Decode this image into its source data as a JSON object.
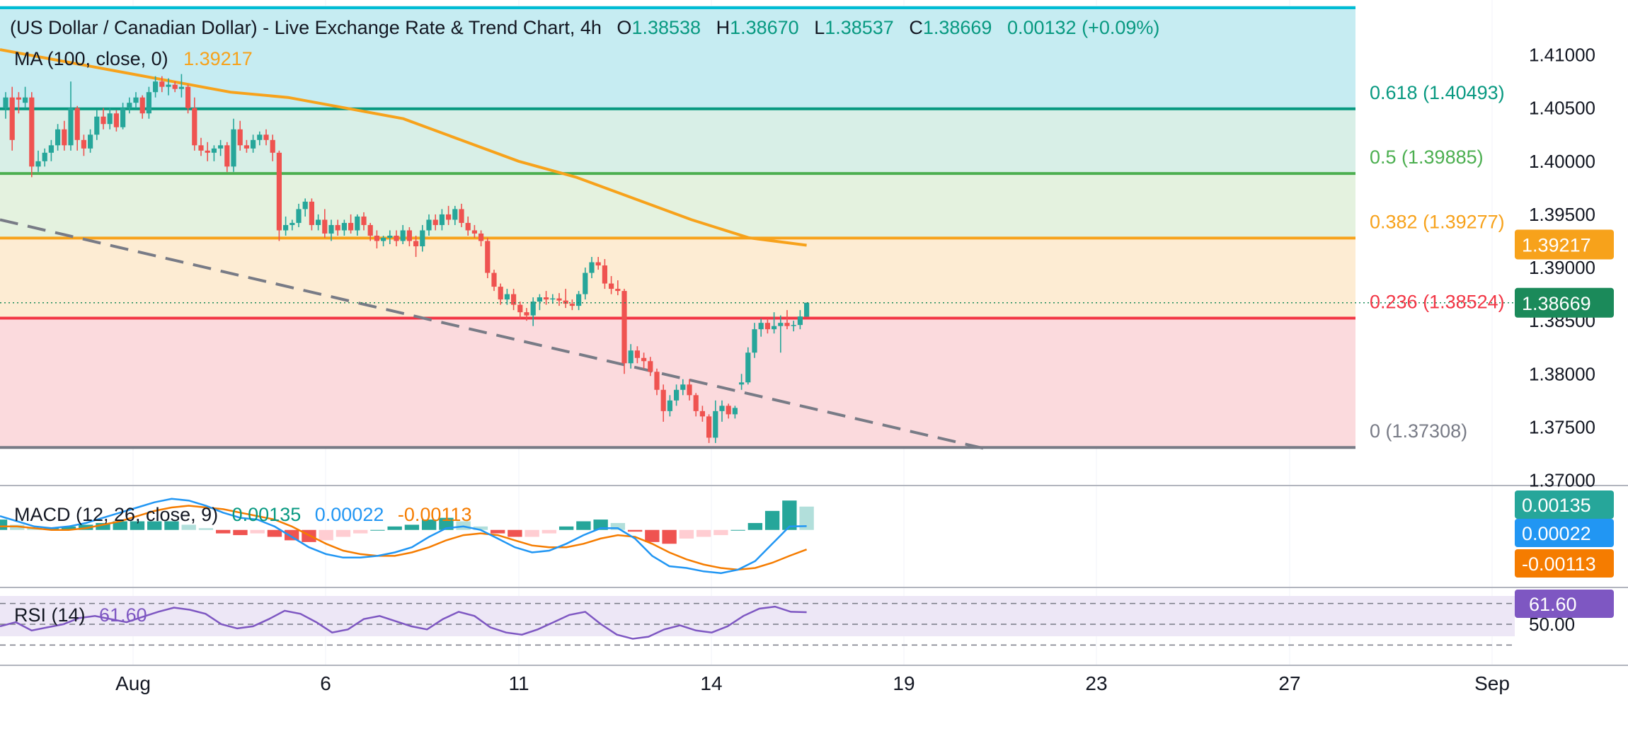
{
  "header": {
    "title": "(US Dollar / Canadian Dollar) - Live Exchange Rate & Trend Chart, 4h",
    "ohlc": [
      {
        "key": "O",
        "value": "1.38538"
      },
      {
        "key": "H",
        "value": "1.38670"
      },
      {
        "key": "L",
        "value": "1.38537"
      },
      {
        "key": "C",
        "value": "1.38669"
      }
    ],
    "change": "0.00132 (+0.09%)",
    "ma_label": "MA (100, close, 0)",
    "ma_value": "1.39217"
  },
  "colors": {
    "up": "#26a69a",
    "down": "#ef5350",
    "ma": "#f7a21b",
    "macd": "#2196f3",
    "signal": "#f57c00",
    "rsi": "#7e57c2",
    "price_badge": "#1b8a5a",
    "fib_0_786_band": "#c6ecf2",
    "fib_0_618_band": "#d8efe7",
    "fib_0_5_band": "#e4f2df",
    "fib_0_382_band": "#fdecd3",
    "fib_0_236_band": "#fbdadd"
  },
  "chart_data": [
    {
      "type": "candlestick",
      "title": "(US Dollar / Canadian Dollar) - Live Exchange Rate & Trend Chart, 4h",
      "x_ticks": [
        "Aug",
        "6",
        "11",
        "14",
        "19",
        "23",
        "27",
        "Sep"
      ],
      "y_ticks": [
        "1.41000",
        "1.40500",
        "1.40000",
        "1.39500",
        "1.39000",
        "1.38500",
        "1.38000",
        "1.37500",
        "1.37000"
      ],
      "ylim": [
        1.3695,
        1.4145
      ],
      "candles": [
        [
          1.405,
          1.4065,
          1.404,
          1.406
        ],
        [
          1.406,
          1.407,
          1.401,
          1.402
        ],
        [
          1.406,
          1.4065,
          1.4045,
          1.4058
        ],
        [
          1.4055,
          1.407,
          1.405,
          1.406
        ],
        [
          1.406,
          1.4065,
          1.3985,
          1.3995
        ],
        [
          1.3995,
          1.401,
          1.399,
          1.4
        ],
        [
          1.4,
          1.4012,
          1.3995,
          1.4008
        ],
        [
          1.4008,
          1.402,
          1.4,
          1.4015
        ],
        [
          1.4015,
          1.4035,
          1.401,
          1.403
        ],
        [
          1.403,
          1.4038,
          1.401,
          1.4015
        ],
        [
          1.4015,
          1.4075,
          1.401,
          1.405
        ],
        [
          1.405,
          1.4052,
          1.401,
          1.402
        ],
        [
          1.402,
          1.4025,
          1.4005,
          1.4012
        ],
        [
          1.4012,
          1.403,
          1.4008,
          1.4025
        ],
        [
          1.4025,
          1.4048,
          1.402,
          1.4042
        ],
        [
          1.4042,
          1.405,
          1.403,
          1.4035
        ],
        [
          1.4035,
          1.405,
          1.403,
          1.4045
        ],
        [
          1.4045,
          1.4048,
          1.4028,
          1.4032
        ],
        [
          1.4032,
          1.4055,
          1.403,
          1.405
        ],
        [
          1.405,
          1.406,
          1.4045,
          1.4055
        ],
        [
          1.4055,
          1.4065,
          1.405,
          1.406
        ],
        [
          1.406,
          1.4062,
          1.404,
          1.4045
        ],
        [
          1.4045,
          1.407,
          1.404,
          1.4065
        ],
        [
          1.4065,
          1.408,
          1.406,
          1.4075
        ],
        [
          1.4075,
          1.408,
          1.4065,
          1.407
        ],
        [
          1.407,
          1.4078,
          1.4062,
          1.4072
        ],
        [
          1.4072,
          1.4075,
          1.4065,
          1.4068
        ],
        [
          1.4068,
          1.4082,
          1.406,
          1.407
        ],
        [
          1.407,
          1.4072,
          1.4045,
          1.405
        ],
        [
          1.405,
          1.406,
          1.401,
          1.4015
        ],
        [
          1.4015,
          1.4022,
          1.4005,
          1.401
        ],
        [
          1.401,
          1.4018,
          1.4,
          1.4008
        ],
        [
          1.4008,
          1.4015,
          1.4,
          1.4012
        ],
        [
          1.4012,
          1.402,
          1.4005,
          1.4015
        ],
        [
          1.4015,
          1.4018,
          1.399,
          1.3995
        ],
        [
          1.3995,
          1.404,
          1.399,
          1.403
        ],
        [
          1.403,
          1.4038,
          1.401,
          1.4015
        ],
        [
          1.4015,
          1.402,
          1.4008,
          1.4012
        ],
        [
          1.4012,
          1.4025,
          1.4008,
          1.402
        ],
        [
          1.402,
          1.4028,
          1.4015,
          1.4025
        ],
        [
          1.4025,
          1.403,
          1.4015,
          1.402
        ],
        [
          1.402,
          1.4025,
          1.4,
          1.4008
        ],
        [
          1.4008,
          1.401,
          1.3925,
          1.3935
        ],
        [
          1.3935,
          1.3948,
          1.393,
          1.394
        ],
        [
          1.394,
          1.3945,
          1.3935,
          1.3942
        ],
        [
          1.3942,
          1.396,
          1.3938,
          1.3955
        ],
        [
          1.3955,
          1.3965,
          1.3948,
          1.3962
        ],
        [
          1.3962,
          1.3965,
          1.3935,
          1.394
        ],
        [
          1.394,
          1.395,
          1.3935,
          1.3945
        ],
        [
          1.3945,
          1.3955,
          1.3928,
          1.3932
        ],
        [
          1.3932,
          1.3945,
          1.3925,
          1.394
        ],
        [
          1.394,
          1.3945,
          1.393,
          1.3935
        ],
        [
          1.3935,
          1.3945,
          1.393,
          1.3942
        ],
        [
          1.3942,
          1.395,
          1.3932,
          1.3935
        ],
        [
          1.3935,
          1.395,
          1.393,
          1.3948
        ],
        [
          1.3948,
          1.3952,
          1.3935,
          1.394
        ],
        [
          1.394,
          1.3942,
          1.3925,
          1.393
        ],
        [
          1.393,
          1.3935,
          1.3918,
          1.3925
        ],
        [
          1.3925,
          1.393,
          1.392,
          1.3928
        ],
        [
          1.3928,
          1.3935,
          1.3922,
          1.393
        ],
        [
          1.393,
          1.3935,
          1.392,
          1.3925
        ],
        [
          1.3925,
          1.394,
          1.3922,
          1.3935
        ],
        [
          1.3935,
          1.3938,
          1.392,
          1.3925
        ],
        [
          1.3925,
          1.393,
          1.391,
          1.392
        ],
        [
          1.392,
          1.394,
          1.3915,
          1.3935
        ],
        [
          1.3935,
          1.395,
          1.393,
          1.3945
        ],
        [
          1.3945,
          1.395,
          1.3935,
          1.394
        ],
        [
          1.394,
          1.3955,
          1.3935,
          1.395
        ],
        [
          1.395,
          1.3958,
          1.394,
          1.3945
        ],
        [
          1.3945,
          1.3958,
          1.394,
          1.3955
        ],
        [
          1.3955,
          1.396,
          1.3938,
          1.3942
        ],
        [
          1.3942,
          1.3948,
          1.393,
          1.3935
        ],
        [
          1.3935,
          1.394,
          1.3928,
          1.3932
        ],
        [
          1.3932,
          1.3935,
          1.392,
          1.3925
        ],
        [
          1.3925,
          1.3928,
          1.389,
          1.3895
        ],
        [
          1.3895,
          1.3898,
          1.3878,
          1.3882
        ],
        [
          1.3882,
          1.3885,
          1.3865,
          1.387
        ],
        [
          1.387,
          1.388,
          1.3865,
          1.3875
        ],
        [
          1.3875,
          1.388,
          1.386,
          1.3865
        ],
        [
          1.3865,
          1.3868,
          1.3852,
          1.3858
        ],
        [
          1.3858,
          1.3862,
          1.385,
          1.3855
        ],
        [
          1.3855,
          1.3872,
          1.3845,
          1.3868
        ],
        [
          1.3868,
          1.3875,
          1.386,
          1.3872
        ],
        [
          1.3872,
          1.3878,
          1.3865,
          1.387
        ],
        [
          1.387,
          1.3875,
          1.3866,
          1.3871
        ],
        [
          1.3871,
          1.3876,
          1.3864,
          1.3869
        ],
        [
          1.3869,
          1.388,
          1.3862,
          1.3866
        ],
        [
          1.3866,
          1.387,
          1.386,
          1.3864
        ],
        [
          1.3864,
          1.3878,
          1.386,
          1.3875
        ],
        [
          1.3875,
          1.39,
          1.387,
          1.3895
        ],
        [
          1.3895,
          1.391,
          1.389,
          1.3905
        ],
        [
          1.3905,
          1.391,
          1.3898,
          1.3902
        ],
        [
          1.3902,
          1.3908,
          1.388,
          1.3885
        ],
        [
          1.3885,
          1.3892,
          1.3875,
          1.388
        ],
        [
          1.388,
          1.3888,
          1.3874,
          1.3878
        ],
        [
          1.3878,
          1.388,
          1.38,
          1.381
        ],
        [
          1.381,
          1.3828,
          1.3805,
          1.3822
        ],
        [
          1.3822,
          1.3826,
          1.381,
          1.3815
        ],
        [
          1.3815,
          1.382,
          1.3805,
          1.3812
        ],
        [
          1.3812,
          1.3816,
          1.3798,
          1.3802
        ],
        [
          1.3802,
          1.3805,
          1.378,
          1.3785
        ],
        [
          1.3785,
          1.379,
          1.3755,
          1.3765
        ],
        [
          1.3765,
          1.378,
          1.376,
          1.3775
        ],
        [
          1.3775,
          1.379,
          1.377,
          1.3785
        ],
        [
          1.3785,
          1.3795,
          1.378,
          1.379
        ],
        [
          1.379,
          1.3795,
          1.3775,
          1.378
        ],
        [
          1.378,
          1.3782,
          1.376,
          1.3765
        ],
        [
          1.3765,
          1.377,
          1.3755,
          1.376
        ],
        [
          1.376,
          1.3762,
          1.3735,
          1.374
        ],
        [
          1.374,
          1.3775,
          1.3735,
          1.3765
        ],
        [
          1.3765,
          1.3775,
          1.3755,
          1.377
        ],
        [
          1.377,
          1.3772,
          1.3758,
          1.3762
        ],
        [
          1.3762,
          1.377,
          1.3758,
          1.3768
        ],
        [
          1.379,
          1.38,
          1.3785,
          1.3792
        ],
        [
          1.3792,
          1.3825,
          1.379,
          1.382
        ],
        [
          1.382,
          1.3848,
          1.3815,
          1.3842
        ],
        [
          1.3842,
          1.3852,
          1.3835,
          1.3848
        ],
        [
          1.3848,
          1.3852,
          1.3838,
          1.3842
        ],
        [
          1.3842,
          1.3858,
          1.3838,
          1.3845
        ],
        [
          1.3845,
          1.3855,
          1.382,
          1.3848
        ],
        [
          1.3848,
          1.386,
          1.3842,
          1.3845
        ],
        [
          1.3845,
          1.385,
          1.384,
          1.3846
        ],
        [
          1.3846,
          1.386,
          1.3842,
          1.3854
        ],
        [
          1.38538,
          1.3867,
          1.38537,
          1.38669
        ]
      ],
      "ma_100": [
        1.4105,
        1.4095,
        1.4085,
        1.4075,
        1.4065,
        1.406,
        1.405,
        1.404,
        1.402,
        1.4,
        1.3985,
        1.3965,
        1.3945,
        1.3928,
        1.3921
      ],
      "fibonacci": [
        {
          "ratio": "0.618",
          "price": 1.40493,
          "label": "0.618 (1.40493)",
          "color": "#089981"
        },
        {
          "ratio": "0.5",
          "price": 1.39885,
          "label": "0.5 (1.39885)",
          "color": "#4caf50"
        },
        {
          "ratio": "0.382",
          "price": 1.39277,
          "label": "0.382 (1.39277)",
          "color": "#f7a21b"
        },
        {
          "ratio": "0.236",
          "price": 1.38524,
          "label": "0.236 (1.38524)",
          "color": "#f23645"
        },
        {
          "ratio": "0",
          "price": 1.37308,
          "label": "0 (1.37308)",
          "color": "#787b86"
        }
      ],
      "trendline": {
        "from": {
          "candle": 0,
          "price": 1.3945
        },
        "to": {
          "candle": 148,
          "price": 1.373
        }
      },
      "last_price": "1.38669",
      "ma_last": "1.39217"
    },
    {
      "type": "line",
      "name": "macd",
      "label": "MACD (12, 26, close, 9)",
      "values_text": [
        "0.00135",
        "0.00022",
        "-0.00113"
      ],
      "histogram_last": "0.00135",
      "macd_last": "0.00022",
      "signal_last": "-0.00113",
      "ylim": [
        -0.003,
        0.0022
      ],
      "macd": [
        0.0008,
        0.0005,
        0.0002,
        0.0001,
        0.0002,
        0.0004,
        0.0007,
        0.001,
        0.0013,
        0.0016,
        0.0018,
        0.0017,
        0.0014,
        0.001,
        0.0007,
        0.0006,
        0.0002,
        -0.0004,
        -0.001,
        -0.0014,
        -0.0016,
        -0.0016,
        -0.0015,
        -0.0013,
        -0.001,
        -0.0004,
        0.0001,
        0.0002,
        0.0,
        -0.0005,
        -0.001,
        -0.0013,
        -0.0012,
        -0.0008,
        -0.0003,
        0.0001,
        0.0001,
        -0.0005,
        -0.0015,
        -0.0021,
        -0.0022,
        -0.0024,
        -0.0025,
        -0.0023,
        -0.0018,
        -0.0008,
        0.0002,
        0.00022
      ],
      "signal": [
        0.0002,
        0.0002,
        0.0001,
        0.0,
        0.0,
        0.0001,
        0.0003,
        0.0005,
        0.0008,
        0.0011,
        0.0013,
        0.0014,
        0.0013,
        0.0012,
        0.001,
        0.0008,
        0.0006,
        0.0002,
        -0.0003,
        -0.0008,
        -0.0012,
        -0.0014,
        -0.0015,
        -0.0015,
        -0.0013,
        -0.001,
        -0.0006,
        -0.0003,
        -0.0002,
        -0.0003,
        -0.0006,
        -0.0009,
        -0.001,
        -0.001,
        -0.0008,
        -0.0005,
        -0.0003,
        -0.0004,
        -0.0008,
        -0.0013,
        -0.0017,
        -0.002,
        -0.0022,
        -0.0023,
        -0.0022,
        -0.0019,
        -0.0015,
        -0.00113
      ],
      "histogram": [
        0.0006,
        0.0003,
        0.0001,
        0.0001,
        0.0002,
        0.0003,
        0.0004,
        0.0005,
        0.0005,
        0.0005,
        0.0005,
        0.0003,
        0.0001,
        -0.0002,
        -0.0003,
        -0.0002,
        -0.0004,
        -0.0006,
        -0.0007,
        -0.0006,
        -0.0004,
        -0.0002,
        0.0,
        0.0002,
        0.0003,
        0.0006,
        0.0007,
        0.0005,
        0.0002,
        -0.0002,
        -0.0004,
        -0.0004,
        -0.0002,
        0.0002,
        0.0005,
        0.0006,
        0.0004,
        -0.0001,
        -0.0007,
        -0.0008,
        -0.0005,
        -0.0004,
        -0.0003,
        0.0,
        0.0004,
        0.0011,
        0.0017,
        0.00135
      ]
    },
    {
      "type": "line",
      "name": "rsi",
      "label": "RSI (14)",
      "value_text": "61.60",
      "y_tick": "50.00",
      "ylim": [
        20,
        80
      ],
      "bands": [
        30,
        70
      ],
      "values": [
        48,
        52,
        44,
        47,
        50,
        56,
        58,
        55,
        52,
        57,
        62,
        66,
        64,
        60,
        50,
        46,
        48,
        55,
        63,
        60,
        52,
        42,
        45,
        55,
        58,
        53,
        48,
        45,
        55,
        62,
        58,
        47,
        42,
        40,
        45,
        52,
        59,
        62,
        50,
        40,
        36,
        38,
        45,
        49,
        44,
        42,
        48,
        58,
        65,
        67,
        62,
        61.6
      ]
    }
  ]
}
